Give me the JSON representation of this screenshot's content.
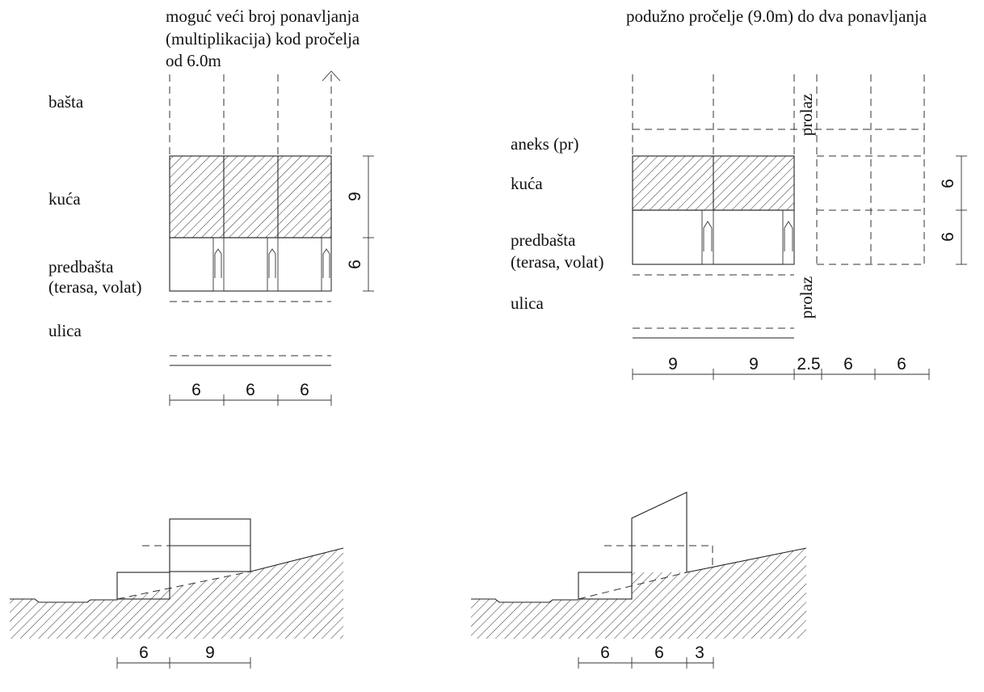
{
  "top_left": {
    "note_lines": [
      "moguć veći broj ponavljanja",
      "(multiplikacija) kod pročelja",
      "od 6.0m"
    ],
    "labels": {
      "basta": "bašta",
      "kuca": "kuća",
      "predbasta_1": "predbašta",
      "predbasta_2": "(terasa, volat)",
      "ulica": "ulica"
    },
    "dims_bottom": [
      "6",
      "6",
      "6"
    ],
    "dims_side": [
      "9",
      "6"
    ]
  },
  "top_right": {
    "note": "podužno pročelje (9.0m) do dva ponavljanja",
    "labels": {
      "aneks": "aneks (pr)",
      "kuca": "kuća",
      "predbasta_1": "predbašta",
      "predbasta_2": "(terasa, volat)",
      "ulica": "ulica",
      "prolaz_top": "prolaz",
      "prolaz_bottom": "prolaz"
    },
    "dims_bottom": [
      "9",
      "9",
      "2.5",
      "6",
      "6"
    ],
    "dims_side": [
      "6",
      "6"
    ]
  },
  "bottom_left": {
    "dims": [
      "6",
      "9"
    ]
  },
  "bottom_right": {
    "dims": [
      "6",
      "6",
      "3"
    ]
  }
}
